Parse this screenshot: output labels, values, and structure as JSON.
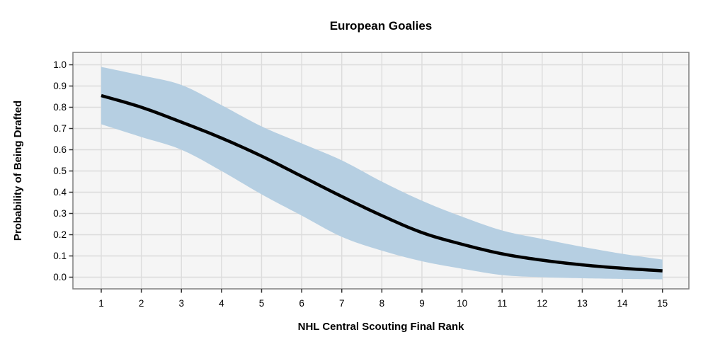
{
  "chart_data": {
    "type": "line",
    "title": "European Goalies",
    "xlabel": "NHL Central Scouting Final Rank",
    "ylabel": "Probability of Being Drafted",
    "x": [
      1,
      2,
      3,
      4,
      5,
      6,
      7,
      8,
      9,
      10,
      11,
      12,
      13,
      14,
      15
    ],
    "series": [
      {
        "name": "predicted-probability",
        "values": [
          0.855,
          0.8,
          0.73,
          0.655,
          0.57,
          0.475,
          0.38,
          0.29,
          0.21,
          0.155,
          0.11,
          0.08,
          0.058,
          0.042,
          0.03
        ]
      },
      {
        "name": "confidence-upper",
        "values": [
          0.99,
          0.95,
          0.905,
          0.81,
          0.71,
          0.63,
          0.55,
          0.45,
          0.36,
          0.285,
          0.22,
          0.18,
          0.143,
          0.11,
          0.083
        ]
      },
      {
        "name": "confidence-lower",
        "values": [
          0.72,
          0.66,
          0.6,
          0.5,
          0.39,
          0.29,
          0.19,
          0.125,
          0.075,
          0.04,
          0.01,
          0.0,
          -0.005,
          -0.008,
          -0.01
        ]
      }
    ],
    "xticks": {
      "values": [
        1,
        2,
        3,
        4,
        5,
        6,
        7,
        8,
        9,
        10,
        11,
        12,
        13,
        14,
        15
      ],
      "labels": [
        "1",
        "2",
        "3",
        "4",
        "5",
        "6",
        "7",
        "8",
        "9",
        "10",
        "11",
        "12",
        "13",
        "14",
        "15"
      ]
    },
    "yticks": {
      "values": [
        0.0,
        0.1,
        0.2,
        0.3,
        0.4,
        0.5,
        0.6,
        0.7,
        0.8,
        0.9,
        1.0
      ],
      "labels": [
        "0.0",
        "0.1",
        "0.2",
        "0.3",
        "0.4",
        "0.5",
        "0.6",
        "0.7",
        "0.8",
        "0.9",
        "1.0"
      ]
    },
    "xlim": [
      0.3,
      15.7
    ],
    "ylim": [
      -0.055,
      1.055
    ],
    "grid": "major-only",
    "legend": "none",
    "colors": {
      "line": "#000000",
      "ribbon": "#b6cfe2",
      "panel_background": "#f5f5f5",
      "gridline": "#dcdcdc",
      "panel_border": "#7f7f7f",
      "tick_mark": "#333333",
      "text": "#000000"
    }
  }
}
